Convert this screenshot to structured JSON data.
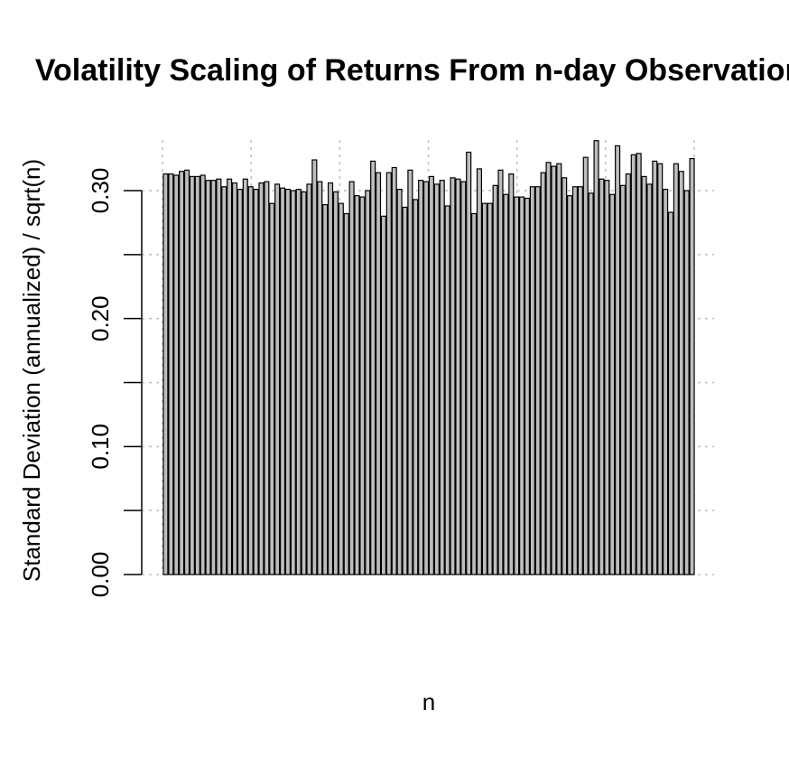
{
  "chart_data": {
    "type": "bar",
    "title": "Volatility Scaling of Returns From n-day Observations",
    "xlabel": "n",
    "ylabel": "Standard Deviation (annualized) / sqrt(n)",
    "color": "#bebebe",
    "edgecolor": "#000000",
    "space": 0.2,
    "xlim": [
      0,
      120
    ],
    "xgrid": [
      0,
      20,
      40,
      60,
      80,
      100,
      120
    ],
    "ylim": [
      0,
      0.3
    ],
    "yticks": [
      {
        "value": 0,
        "label": "0.00"
      },
      {
        "value": 0.1,
        "label": "0.10"
      },
      {
        "value": 0.2,
        "label": "0.20"
      },
      {
        "value": 0.3,
        "label": "0.30"
      }
    ],
    "yminor_ticks": [
      0.05,
      0.15,
      0.25
    ],
    "grid": true,
    "values": [
      0.313,
      0.313,
      0.312,
      0.315,
      0.316,
      0.311,
      0.311,
      0.312,
      0.308,
      0.308,
      0.309,
      0.303,
      0.309,
      0.306,
      0.301,
      0.309,
      0.303,
      0.301,
      0.306,
      0.307,
      0.29,
      0.305,
      0.302,
      0.301,
      0.3,
      0.301,
      0.299,
      0.305,
      0.324,
      0.307,
      0.289,
      0.306,
      0.299,
      0.29,
      0.282,
      0.307,
      0.296,
      0.295,
      0.3,
      0.323,
      0.314,
      0.28,
      0.314,
      0.318,
      0.301,
      0.287,
      0.316,
      0.293,
      0.308,
      0.307,
      0.311,
      0.305,
      0.308,
      0.288,
      0.31,
      0.309,
      0.307,
      0.33,
      0.282,
      0.317,
      0.29,
      0.29,
      0.304,
      0.316,
      0.297,
      0.313,
      0.295,
      0.295,
      0.294,
      0.303,
      0.303,
      0.314,
      0.322,
      0.319,
      0.321,
      0.31,
      0.296,
      0.303,
      0.303,
      0.326,
      0.298,
      0.339,
      0.309,
      0.308,
      0.297,
      0.335,
      0.304,
      0.313,
      0.328,
      0.329,
      0.311,
      0.305,
      0.323,
      0.321,
      0.301,
      0.283,
      0.321,
      0.315,
      0.3,
      0.325
    ]
  }
}
